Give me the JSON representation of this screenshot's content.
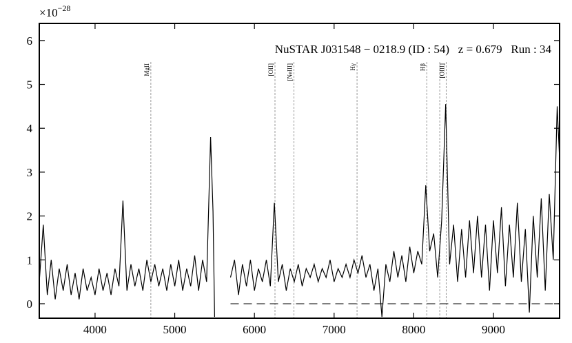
{
  "chart_data": {
    "type": "line",
    "annotation": "NuSTAR J031548 − 0218.9 (ID : 54)   z = 0.679   Run : 34",
    "y_multiplier": {
      "base": "×10",
      "exponent": "−28"
    },
    "x": [
      3300,
      3350,
      3400,
      3450,
      3500,
      3550,
      3600,
      3650,
      3700,
      3750,
      3800,
      3850,
      3900,
      3950,
      4000,
      4050,
      4100,
      4150,
      4200,
      4250,
      4300,
      4350,
      4400,
      4450,
      4500,
      4550,
      4600,
      4650,
      4700,
      4750,
      4800,
      4850,
      4900,
      4950,
      5000,
      5050,
      5100,
      5150,
      5200,
      5250,
      5300,
      5350,
      5400,
      5450,
      5480,
      5500,
      5600,
      5700,
      5750,
      5800,
      5850,
      5900,
      5950,
      6000,
      6050,
      6100,
      6150,
      6200,
      6250,
      6300,
      6350,
      6400,
      6450,
      6500,
      6550,
      6600,
      6650,
      6700,
      6750,
      6800,
      6850,
      6900,
      6950,
      7000,
      7050,
      7100,
      7150,
      7200,
      7250,
      7300,
      7350,
      7400,
      7450,
      7500,
      7550,
      7600,
      7650,
      7700,
      7750,
      7800,
      7850,
      7900,
      7950,
      8000,
      8050,
      8100,
      8150,
      8200,
      8250,
      8300,
      8350,
      8400,
      8450,
      8500,
      8550,
      8600,
      8650,
      8700,
      8750,
      8800,
      8850,
      8900,
      8950,
      9000,
      9050,
      9100,
      9150,
      9200,
      9250,
      9300,
      9350,
      9400,
      9450,
      9500,
      9550,
      9600,
      9650,
      9700,
      9750,
      9800,
      9830
    ],
    "series": [
      {
        "name": "spectrum",
        "color": "#000000",
        "values": [
          0.5,
          1.8,
          0.2,
          1.0,
          0.1,
          0.8,
          0.3,
          0.9,
          0.2,
          0.7,
          0.1,
          0.8,
          0.3,
          0.6,
          0.2,
          0.8,
          0.3,
          0.7,
          0.2,
          0.8,
          0.4,
          2.35,
          0.3,
          0.9,
          0.4,
          0.8,
          0.3,
          1.0,
          0.5,
          0.9,
          0.4,
          0.8,
          0.3,
          0.9,
          0.4,
          1.0,
          0.3,
          0.8,
          0.4,
          1.1,
          0.3,
          1.0,
          0.5,
          3.8,
          2.1,
          -0.3,
          null,
          0.6,
          1.0,
          0.2,
          0.9,
          0.4,
          1.0,
          0.3,
          0.8,
          0.5,
          1.0,
          0.4,
          2.3,
          0.5,
          0.9,
          0.3,
          0.8,
          0.5,
          0.9,
          0.4,
          0.8,
          0.6,
          0.9,
          0.5,
          0.8,
          0.6,
          1.0,
          0.5,
          0.8,
          0.6,
          0.9,
          0.6,
          1.0,
          0.7,
          1.1,
          0.6,
          0.9,
          0.3,
          0.8,
          -0.3,
          0.9,
          0.5,
          1.2,
          0.6,
          1.1,
          0.5,
          1.3,
          0.7,
          1.2,
          0.9,
          2.7,
          1.2,
          1.6,
          0.6,
          1.9,
          4.55,
          0.9,
          1.8,
          0.5,
          1.7,
          0.6,
          1.9,
          0.7,
          2.0,
          0.6,
          1.8,
          0.3,
          1.9,
          0.7,
          2.2,
          0.4,
          1.8,
          0.6,
          2.3,
          0.5,
          1.7,
          -0.2,
          2.0,
          0.6,
          2.4,
          0.3,
          2.5,
          1.0,
          4.5,
          3.3
        ]
      }
    ],
    "lines": [
      {
        "x": 4700,
        "label": "MgII"
      },
      {
        "x": 6258,
        "label": "[OII]"
      },
      {
        "x": 6496,
        "label": "[NeIII]"
      },
      {
        "x": 7288,
        "label": "Hγ"
      },
      {
        "x": 8163,
        "label": "Hβ"
      },
      {
        "x": 8326,
        "label": null
      },
      {
        "x": 8407,
        "label": "[OIII]"
      }
    ],
    "hline": {
      "y": 0,
      "x_from": 5700
    },
    "xlim": [
      3300,
      9830
    ],
    "ylim": [
      -0.33,
      6.39
    ],
    "xticks": [
      4000,
      5000,
      6000,
      7000,
      8000,
      9000
    ],
    "yticks": [
      0,
      1,
      2,
      3,
      4,
      5,
      6
    ]
  }
}
